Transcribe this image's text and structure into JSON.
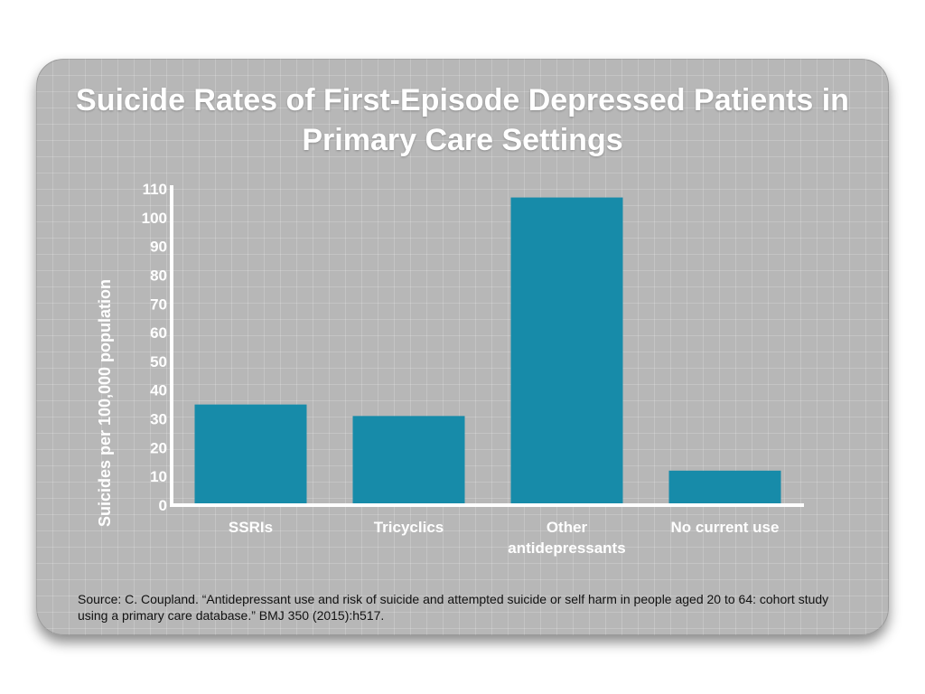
{
  "chart_data": {
    "type": "bar",
    "title": "Suicide Rates of First-Episode Depressed Patients in Primary Care Settings",
    "ylabel": "Suicides per 100,000 population",
    "xlabel": "",
    "categories": [
      "SSRIs",
      "Tricyclics",
      "Other antidepressants",
      "No current use"
    ],
    "category_lines": [
      [
        "SSRIs"
      ],
      [
        "Tricyclics"
      ],
      [
        "Other",
        "antidepressants"
      ],
      [
        "No current use"
      ]
    ],
    "values": [
      35,
      31,
      107,
      12
    ],
    "ylim": [
      0,
      110
    ],
    "yticks": [
      0,
      10,
      20,
      30,
      40,
      50,
      60,
      70,
      80,
      90,
      100,
      110
    ],
    "grid": true,
    "legend": "none",
    "bar_color": "#178ba9"
  },
  "source": "Source:  C. Coupland. “Antidepressant use and risk of suicide and attempted suicide or self harm in people aged 20 to 64: cohort study using a primary care database.” BMJ 350 (2015):h517."
}
